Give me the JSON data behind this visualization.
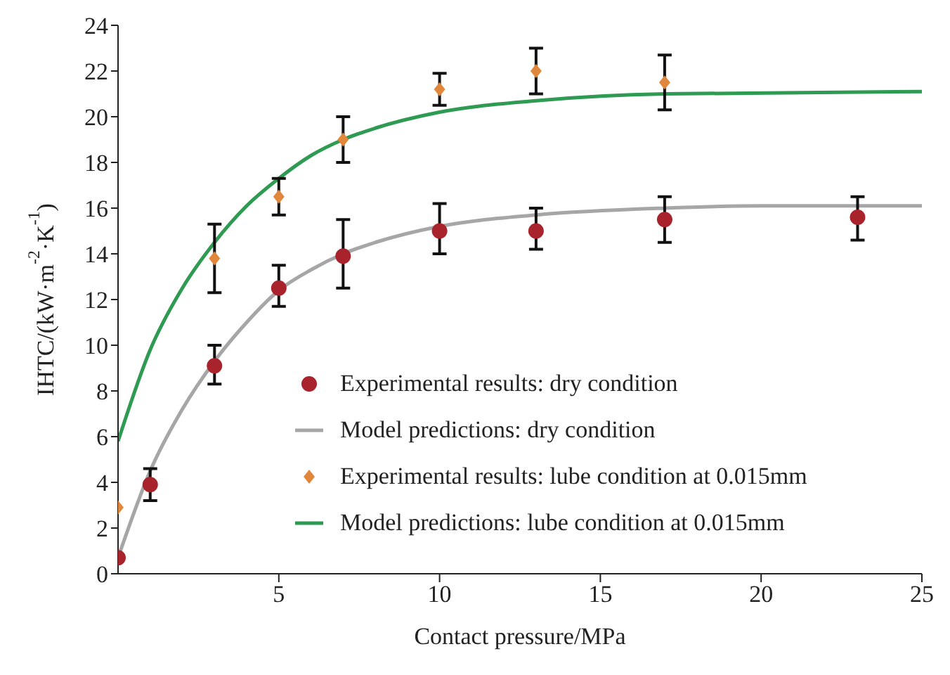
{
  "chart_data": {
    "type": "scatter",
    "xlabel": "Contact pressure/MPa",
    "ylabel": "IHTC/(kW·m$^{-2}$·K$^{-1}$)",
    "xlim": [
      0,
      25
    ],
    "xticks": [
      5,
      10,
      15,
      20,
      25
    ],
    "ylim": [
      0,
      24
    ],
    "yticks": [
      0,
      2,
      4,
      6,
      8,
      10,
      12,
      14,
      16,
      18,
      20,
      22,
      24
    ],
    "grid": false,
    "legend": "bottom",
    "series": [
      {
        "name": "Experimental results: dry condition",
        "marker": "circle",
        "color": "#a8232b",
        "x": [
          0,
          1,
          3,
          5,
          7,
          10,
          13,
          17,
          23
        ],
        "values": [
          0.7,
          3.9,
          9.1,
          12.5,
          13.9,
          15.0,
          15.0,
          15.5,
          15.6
        ],
        "errors": [
          null,
          [
            3.2,
            4.6
          ],
          [
            8.3,
            10.0
          ],
          [
            11.7,
            13.5
          ],
          [
            12.5,
            15.5
          ],
          [
            14.0,
            16.2
          ],
          [
            14.2,
            16.0
          ],
          [
            14.5,
            16.5
          ],
          [
            14.6,
            16.5
          ]
        ]
      },
      {
        "name": "Model predictions: dry condition",
        "type": "line",
        "marker": "none",
        "line_style": "solid",
        "color": "#a6a6a6",
        "x": [
          0,
          1,
          2,
          3,
          4,
          5,
          6,
          7,
          8,
          10,
          13,
          17,
          20,
          25
        ],
        "values": [
          0.7,
          4.5,
          7.2,
          9.3,
          11.0,
          12.4,
          13.3,
          14.0,
          14.5,
          15.2,
          15.7,
          16.0,
          16.1,
          16.1
        ]
      },
      {
        "name": "Experimental results: lube condition at 0.015mm",
        "marker": "diamond",
        "color": "#e0873c",
        "x": [
          0,
          3,
          5,
          7,
          10,
          13,
          17
        ],
        "values": [
          2.9,
          13.8,
          16.5,
          19.0,
          21.2,
          22.0,
          21.5
        ],
        "errors": [
          null,
          [
            12.3,
            15.3
          ],
          [
            15.7,
            17.3
          ],
          [
            18.0,
            20.0
          ],
          [
            20.5,
            21.9
          ],
          [
            21.0,
            23.0
          ],
          [
            20.3,
            22.7
          ]
        ]
      },
      {
        "name": "Model predictions: lube condition at 0.015mm",
        "type": "line",
        "marker": "none",
        "line_style": "solid",
        "color": "#2e9a52",
        "x": [
          0,
          1,
          2,
          3,
          4,
          5,
          6,
          7,
          8,
          10,
          13,
          17,
          25
        ],
        "values": [
          5.8,
          9.8,
          12.5,
          14.5,
          16.1,
          17.3,
          18.3,
          19.0,
          19.5,
          20.2,
          20.7,
          21.0,
          21.1
        ]
      }
    ]
  }
}
